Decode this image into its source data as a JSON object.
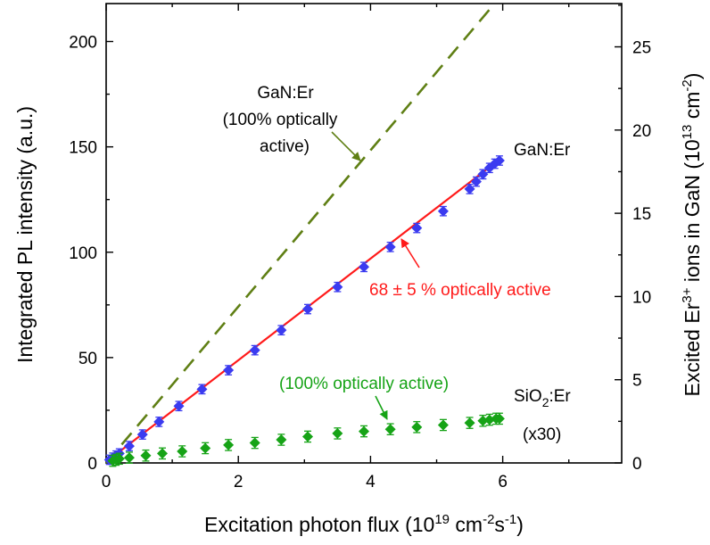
{
  "chart_data": {
    "type": "scatter",
    "xlabel": "Excitation photon flux (10",
    "xlabel_exp": "19",
    "xlabel_unit": " cm",
    "xlabel_unit_exp1": "-2",
    "xlabel_unit_s": "s",
    "xlabel_unit_exp2": "-1",
    "xlabel_end": ")",
    "ylabel": "Integrated PL intensity (a.u.)",
    "y2label_a": "Excited Er",
    "y2label_sup": "3+",
    "y2label_b": " ions in GaN (10",
    "y2label_sup2": "13",
    "y2label_c": " cm",
    "y2label_sup3": "-2",
    "y2label_d": ")",
    "xlim": [
      0,
      7.8
    ],
    "ylim": [
      0,
      218
    ],
    "y2lim": [
      0,
      27.6
    ],
    "xticks": [
      0,
      2,
      4,
      6
    ],
    "yticks": [
      0,
      50,
      100,
      150,
      200
    ],
    "y2ticks": [
      0,
      5,
      10,
      15,
      20,
      25
    ],
    "series": [
      {
        "name": "GaN:Er",
        "color": "#3b3bf0",
        "marker": "diamond",
        "x": [
          0.05,
          0.1,
          0.15,
          0.2,
          0.35,
          0.55,
          0.8,
          1.1,
          1.45,
          1.85,
          2.25,
          2.65,
          3.05,
          3.5,
          3.9,
          4.3,
          4.7,
          5.1,
          5.5,
          5.6,
          5.7,
          5.8,
          5.88,
          5.95
        ],
        "y": [
          1.5,
          2.5,
          3.5,
          4.5,
          8,
          13.5,
          19.5,
          27,
          35,
          44,
          53.5,
          63,
          73,
          83.5,
          93,
          102.5,
          111.5,
          119.5,
          130,
          133.5,
          137,
          140,
          142,
          143.5
        ],
        "yerr": 2.2
      },
      {
        "name": "SiO2:Er (x30)",
        "color": "#16a316",
        "marker": "diamond",
        "x": [
          0.1,
          0.15,
          0.2,
          0.35,
          0.6,
          0.85,
          1.15,
          1.5,
          1.85,
          2.25,
          2.65,
          3.05,
          3.5,
          3.9,
          4.3,
          4.7,
          5.1,
          5.5,
          5.7,
          5.8,
          5.9,
          5.95
        ],
        "y": [
          1,
          1.5,
          2,
          2.5,
          3.5,
          4.5,
          5.5,
          7,
          8.5,
          9.5,
          11,
          12.5,
          14,
          15,
          16,
          17,
          18,
          19,
          20,
          20.5,
          21,
          21
        ],
        "yerr": 2.6
      }
    ],
    "lines": [
      {
        "name": "fit",
        "color": "#ff1a1a",
        "style": "solid",
        "x": [
          0.0,
          5.95
        ],
        "y": [
          0.5,
          144
        ]
      },
      {
        "name": "100% optically active",
        "color": "#5f7f14",
        "style": "dashed",
        "x": [
          0.0,
          5.85
        ],
        "y": [
          0.0,
          217
        ]
      }
    ],
    "annotations": {
      "gan_label": "GaN:Er",
      "sio2_label_a": "SiO",
      "sio2_label_sub": "2",
      "sio2_label_b": ":Er",
      "sio2_label_scale": "(x30)",
      "fit_label": "68 ± 5 % optically active",
      "dashed_label_1": "GaN:Er",
      "dashed_label_2": "(100% optically",
      "dashed_label_3": "active)",
      "green_label": "(100% optically active)"
    },
    "colors": {
      "gan_series": "#3b3bf0",
      "sio2_series": "#16a316",
      "fit_line": "#ff1a1a",
      "dashed_line": "#5f7f14"
    },
    "grid": false
  }
}
